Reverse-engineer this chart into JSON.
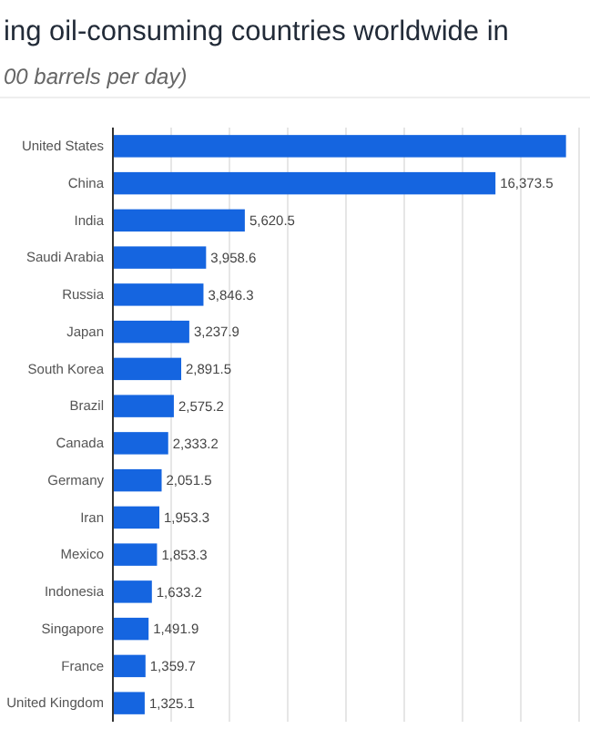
{
  "chart_data": {
    "type": "bar",
    "orientation": "horizontal",
    "title": "ing oil-consuming countries worldwide in",
    "subtitle": "00 barrels per day)",
    "categories": [
      "United States",
      "China",
      "India",
      "Saudi Arabia",
      "Russia",
      "Japan",
      "South Korea",
      "Brazil",
      "Canada",
      "Germany",
      "Iran",
      "Mexico",
      "Indonesia",
      "Singapore",
      "France",
      "United Kingdom"
    ],
    "values": [
      19400,
      16373.5,
      5620.5,
      3958.6,
      3846.3,
      3237.9,
      2891.5,
      2575.2,
      2333.2,
      2051.5,
      1953.3,
      1853.3,
      1633.2,
      1491.9,
      1359.7,
      1325.1
    ],
    "value_labels": [
      null,
      "16,373.5",
      "5,620.5",
      "3,958.6",
      "3,846.3",
      "3,237.9",
      "2,891.5",
      "2,575.2",
      "2,333.2",
      "2,051.5",
      "1,953.3",
      "1,853.3",
      "1,633.2",
      "1,491.9",
      "1,359.7",
      "1,325.1"
    ],
    "color": "#1565e0",
    "xlim": [
      0,
      20000
    ],
    "xticks": [
      {
        "value": 0,
        "label": null
      },
      {
        "value": 2500,
        "label": null
      },
      {
        "value": 5000,
        "label": null
      },
      {
        "value": 7500,
        "label": null
      },
      {
        "value": 10000,
        "label": null
      },
      {
        "value": 12500,
        "label": null
      },
      {
        "value": 15000,
        "label": null
      },
      {
        "value": 17500,
        "label": null
      },
      {
        "value": 20000,
        "label": null
      }
    ],
    "grid": "x",
    "tick_labels": "y"
  }
}
